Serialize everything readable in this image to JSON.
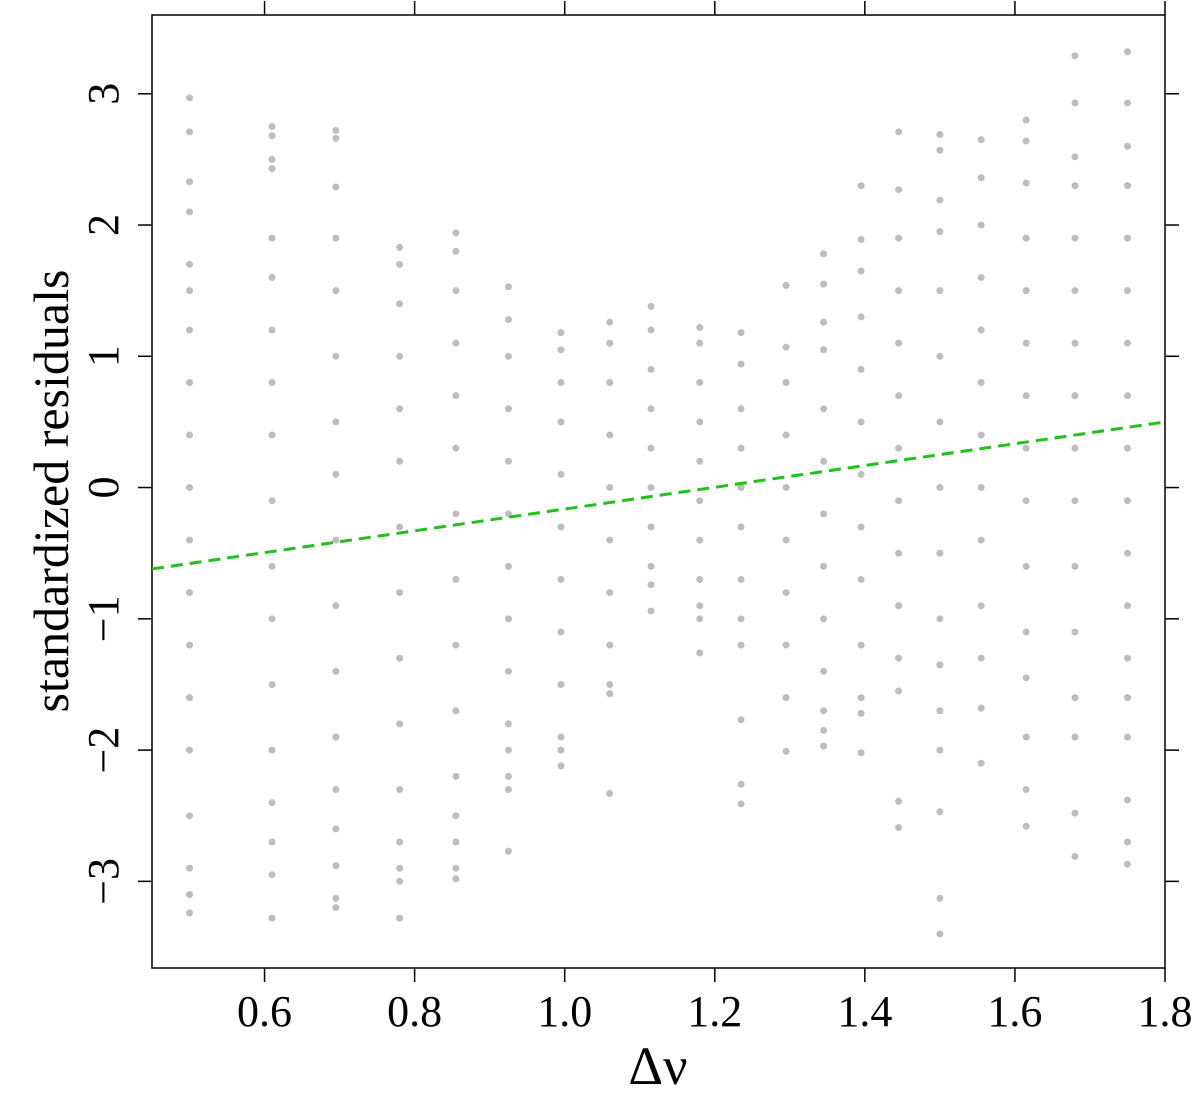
{
  "chart_data": {
    "type": "scatter",
    "xlabel": "Δν",
    "ylabel": "standardized residuals",
    "xlim": [
      0.45,
      1.8
    ],
    "ylim": [
      -3.66,
      3.6
    ],
    "xticks": [
      0.6,
      0.8,
      {
        "value": 1.0,
        "label": "1.0"
      },
      1.2,
      1.4,
      1.6,
      1.8
    ],
    "yticks": [
      {
        "value": -3,
        "label": "−3"
      },
      {
        "value": -2,
        "label": "−2"
      },
      {
        "value": -1,
        "label": "−1"
      },
      0,
      1,
      2,
      3
    ],
    "color": "#bdbdbd",
    "columns": [
      {
        "x": 0.5,
        "values": [
          2.97,
          2.71,
          2.33,
          2.1,
          1.7,
          1.5,
          1.2,
          0.8,
          0.4,
          0,
          -0.4,
          -0.8,
          -1.2,
          -1.6,
          -2,
          -2.5,
          -2.9,
          -3.1,
          -3.24
        ]
      },
      {
        "x": 0.61,
        "values": [
          2.75,
          2.68,
          2.5,
          2.43,
          1.9,
          1.6,
          1.2,
          0.8,
          0.4,
          -0.1,
          -0.6,
          -1,
          -1.5,
          -2,
          -2.4,
          -2.7,
          -2.95,
          -3.28
        ]
      },
      {
        "x": 0.695,
        "values": [
          2.72,
          2.66,
          2.29,
          1.9,
          1.5,
          1.0,
          0.5,
          0.1,
          -0.4,
          -0.9,
          -1.4,
          -1.9,
          -2.3,
          -2.6,
          -2.88,
          -3.13,
          -3.2
        ]
      },
      {
        "x": 0.78,
        "values": [
          1.83,
          1.7,
          1.4,
          1.0,
          0.6,
          0.2,
          -0.3,
          -0.8,
          -1.3,
          -1.8,
          -2.3,
          -2.7,
          -2.9,
          -3.0,
          -3.28
        ]
      },
      {
        "x": 0.855,
        "values": [
          1.94,
          1.8,
          1.5,
          1.1,
          0.7,
          0.3,
          -0.2,
          -0.7,
          -1.2,
          -1.7,
          -2.2,
          -2.5,
          -2.7,
          -2.9,
          -2.98
        ]
      },
      {
        "x": 0.925,
        "values": [
          1.53,
          1.28,
          1.0,
          0.6,
          0.2,
          -0.2,
          -0.6,
          -1.0,
          -1.4,
          -1.8,
          -2.0,
          -2.2,
          -2.3,
          -2.77
        ]
      },
      {
        "x": 0.995,
        "values": [
          1.18,
          1.05,
          0.8,
          0.5,
          0.1,
          -0.3,
          -0.7,
          -1.1,
          -1.5,
          -1.9,
          -2.0,
          -2.12
        ]
      },
      {
        "x": 1.06,
        "values": [
          1.26,
          1.1,
          0.8,
          0.4,
          0,
          -0.4,
          -0.8,
          -1.2,
          -1.5,
          -1.57,
          -2.33
        ]
      },
      {
        "x": 1.115,
        "values": [
          1.38,
          1.2,
          0.9,
          0.6,
          0.3,
          0,
          -0.3,
          -0.6,
          -0.74,
          -0.94
        ]
      },
      {
        "x": 1.18,
        "values": [
          1.22,
          1.1,
          0.8,
          0.5,
          0.2,
          -0.1,
          -0.4,
          -0.7,
          -0.9,
          -1.0,
          -1.26
        ]
      },
      {
        "x": 1.235,
        "values": [
          1.18,
          0.94,
          0.6,
          0.3,
          0,
          -0.3,
          -0.7,
          -1.0,
          -1.2,
          -1.77,
          -2.26,
          -2.41
        ]
      },
      {
        "x": 1.295,
        "values": [
          1.54,
          1.07,
          0.8,
          0.4,
          0,
          -0.4,
          -0.8,
          -1.2,
          -1.6,
          -2.01
        ]
      },
      {
        "x": 1.345,
        "values": [
          1.78,
          1.55,
          1.26,
          1.05,
          0.6,
          0.2,
          -0.2,
          -0.6,
          -1.0,
          -1.4,
          -1.7,
          -1.85,
          -1.97
        ]
      },
      {
        "x": 1.395,
        "values": [
          2.3,
          1.89,
          1.65,
          1.3,
          0.9,
          0.5,
          0.1,
          -0.3,
          -0.7,
          -1.2,
          -1.6,
          -1.72,
          -2.02
        ]
      },
      {
        "x": 1.445,
        "values": [
          2.71,
          2.27,
          1.9,
          1.5,
          1.1,
          0.7,
          0.3,
          -0.1,
          -0.5,
          -0.9,
          -1.3,
          -1.55,
          -2.39,
          -2.59
        ]
      },
      {
        "x": 1.5,
        "values": [
          2.69,
          2.57,
          2.19,
          1.95,
          1.5,
          1.0,
          0.5,
          0,
          -0.5,
          -1.0,
          -1.35,
          -1.7,
          -2.0,
          -2.47,
          -3.13,
          -3.4
        ]
      },
      {
        "x": 1.555,
        "values": [
          2.65,
          2.36,
          2.0,
          1.6,
          1.2,
          0.8,
          0.4,
          0,
          -0.4,
          -0.9,
          -1.3,
          -1.68,
          -2.1
        ]
      },
      {
        "x": 1.615,
        "values": [
          2.8,
          2.64,
          2.32,
          1.9,
          1.5,
          1.1,
          0.7,
          0.3,
          -0.1,
          -0.6,
          -1.1,
          -1.45,
          -1.9,
          -2.3,
          -2.58
        ]
      },
      {
        "x": 1.68,
        "values": [
          3.29,
          2.93,
          2.52,
          2.3,
          1.9,
          1.5,
          1.1,
          0.7,
          0.3,
          -0.1,
          -0.6,
          -1.1,
          -1.6,
          -1.9,
          -2.48,
          -2.81
        ]
      },
      {
        "x": 1.75,
        "values": [
          3.32,
          2.93,
          2.6,
          2.3,
          1.9,
          1.5,
          1.1,
          0.7,
          0.3,
          -0.1,
          -0.5,
          -0.9,
          -1.3,
          -1.6,
          -1.9,
          -2.38,
          -2.7,
          -2.87
        ]
      }
    ],
    "fit": {
      "x": [
        0.45,
        1.8
      ],
      "values": [
        -0.62,
        0.5
      ],
      "color": "#22c01a"
    }
  }
}
